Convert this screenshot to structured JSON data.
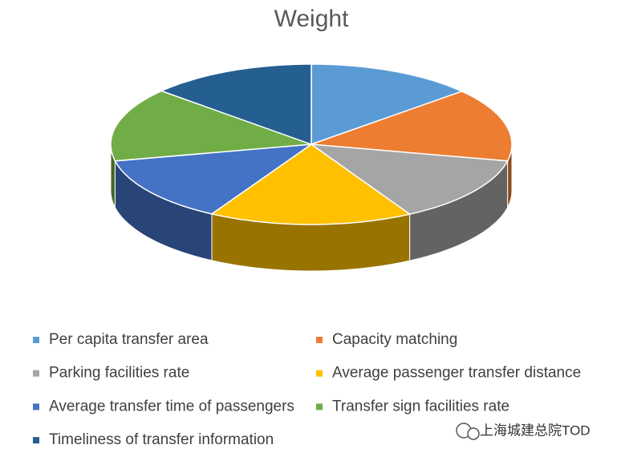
{
  "chart_data": {
    "type": "pie3d",
    "title": "Weight",
    "categories": [
      "Per capita transfer area",
      "Capacity matching",
      "Parking facilities rate",
      "Average passenger transfer distance",
      "Average transfer time of passengers",
      "Transfer sign facilities rate",
      "Timeliness of transfer information"
    ],
    "values": [
      0.135,
      0.148,
      0.135,
      0.164,
      0.134,
      0.149,
      0.134
    ],
    "colors": [
      "#5b9bd5",
      "#ed7d31",
      "#a5a5a5",
      "#ffc000",
      "#4472c4",
      "#70ad47",
      "#255e91"
    ],
    "legend": "bottom"
  },
  "watermark": "上海城建总院TOD"
}
